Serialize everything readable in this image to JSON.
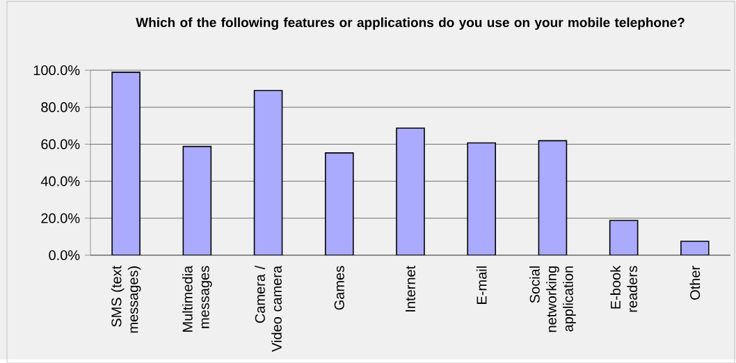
{
  "chart_data": {
    "type": "bar",
    "title": "Which of the following features or applications do you use on your mobile telephone?",
    "categories": [
      "SMS (text messages)",
      "Multimedia messages",
      "Camera / Video camera",
      "Games",
      "Internet",
      "E-mail",
      "Social networking application",
      "E-book readers",
      "Other"
    ],
    "values": [
      98.9,
      58.8,
      89.0,
      55.3,
      68.7,
      60.7,
      61.9,
      18.8,
      7.5
    ],
    "color": "#aaaaff",
    "ylim": [
      0,
      100
    ],
    "yticks": [
      {
        "value": 0,
        "label": "0.0%"
      },
      {
        "value": 20,
        "label": "20.0%"
      },
      {
        "value": 40,
        "label": "40.0%"
      },
      {
        "value": 60,
        "label": "60.0%"
      },
      {
        "value": 80,
        "label": "80.0%"
      },
      {
        "value": 100,
        "label": "100.0%"
      }
    ],
    "grid": "y"
  }
}
